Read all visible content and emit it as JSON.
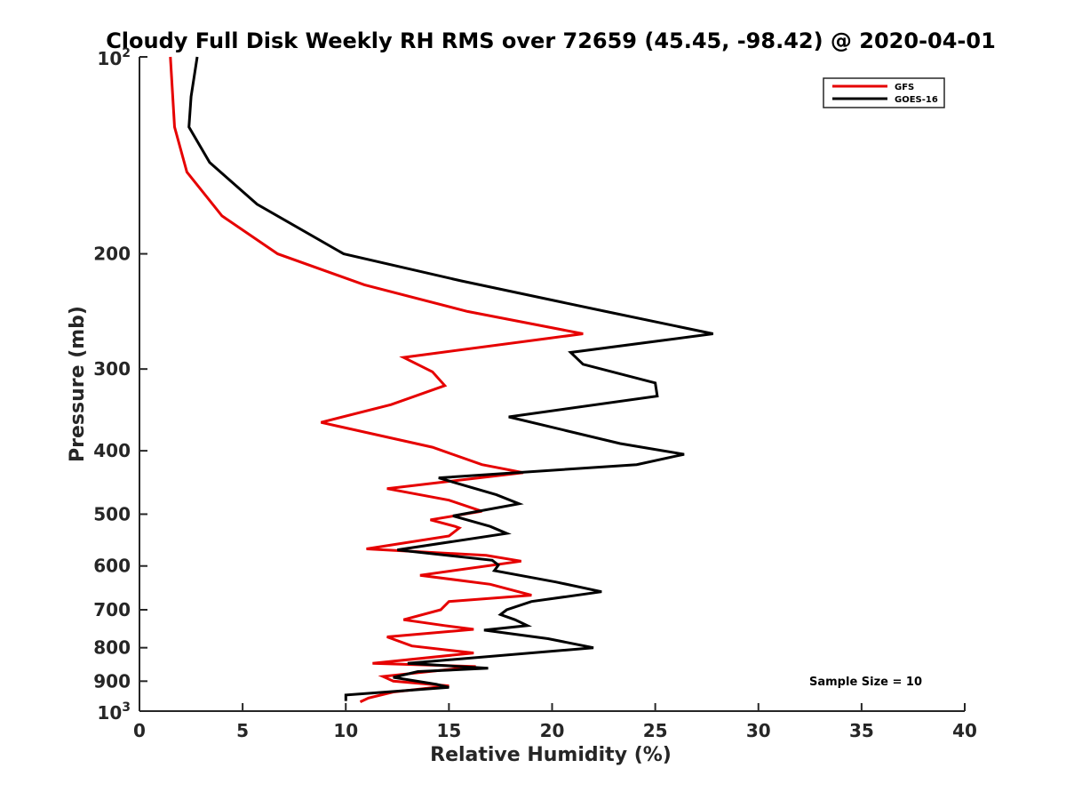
{
  "chart_data": {
    "type": "line",
    "title": "Cloudy Full Disk Weekly RH RMS over 72659 (45.45, -98.42) @ 2020-04-01",
    "xlabel": "Relative Humidity (%)",
    "ylabel": "Pressure (mb)",
    "xlim": [
      0,
      40
    ],
    "ylim": [
      100,
      1000
    ],
    "y_scale": "log",
    "y_reversed": true,
    "x_ticks": [
      "0",
      "5",
      "10",
      "15",
      "20",
      "25",
      "30",
      "35",
      "40"
    ],
    "y_ticks": [
      {
        "value": 100,
        "base": "10",
        "exp": "2"
      },
      {
        "value": 200,
        "label": "200"
      },
      {
        "value": 300,
        "label": "300"
      },
      {
        "value": 400,
        "label": "400"
      },
      {
        "value": 500,
        "label": "500"
      },
      {
        "value": 600,
        "label": "600"
      },
      {
        "value": 700,
        "label": "700"
      },
      {
        "value": 800,
        "label": "800"
      },
      {
        "value": 900,
        "label": "900"
      },
      {
        "value": 1000,
        "base": "10",
        "exp": "3"
      }
    ],
    "grid": false,
    "legend": {
      "position": "top-right"
    },
    "annotation": "Sample Size = 10",
    "series": [
      {
        "name": "GFS",
        "color": "#e60000",
        "points": [
          [
            1.5,
            100
          ],
          [
            1.7,
            128
          ],
          [
            2.3,
            150
          ],
          [
            4.0,
            175
          ],
          [
            6.7,
            200
          ],
          [
            10.9,
            223
          ],
          [
            15.9,
            245
          ],
          [
            21.5,
            265
          ],
          [
            12.8,
            288
          ],
          [
            14.2,
            303
          ],
          [
            14.8,
            318
          ],
          [
            12.2,
            340
          ],
          [
            8.8,
            362
          ],
          [
            14.2,
            395
          ],
          [
            16.6,
            420
          ],
          [
            18.6,
            432
          ],
          [
            12.0,
            457
          ],
          [
            15.0,
            476
          ],
          [
            16.6,
            495
          ],
          [
            14.1,
            510
          ],
          [
            15.3,
            522
          ],
          [
            15.5,
            525
          ],
          [
            15.0,
            540
          ],
          [
            11.0,
            565
          ],
          [
            16.8,
            578
          ],
          [
            18.5,
            590
          ],
          [
            13.6,
            620
          ],
          [
            17.0,
            640
          ],
          [
            19.0,
            665
          ],
          [
            15.0,
            680
          ],
          [
            14.6,
            700
          ],
          [
            12.8,
            725
          ],
          [
            14.8,
            740
          ],
          [
            16.2,
            750
          ],
          [
            12.0,
            770
          ],
          [
            13.2,
            795
          ],
          [
            16.2,
            815
          ],
          [
            11.3,
            845
          ],
          [
            16.3,
            855
          ],
          [
            11.8,
            885
          ],
          [
            12.3,
            900
          ],
          [
            15.0,
            915
          ],
          [
            12.3,
            935
          ],
          [
            11.1,
            955
          ],
          [
            10.7,
            968
          ]
        ]
      },
      {
        "name": "GOES-16",
        "color": "#000000",
        "points": [
          [
            2.8,
            100
          ],
          [
            2.5,
            115
          ],
          [
            2.4,
            128
          ],
          [
            3.4,
            145
          ],
          [
            5.7,
            168
          ],
          [
            9.9,
            200
          ],
          [
            15.6,
            220
          ],
          [
            22.6,
            245
          ],
          [
            27.8,
            265
          ],
          [
            20.9,
            283
          ],
          [
            21.5,
            295
          ],
          [
            25.0,
            315
          ],
          [
            25.1,
            330
          ],
          [
            17.9,
            355
          ],
          [
            23.3,
            390
          ],
          [
            26.4,
            405
          ],
          [
            24.1,
            420
          ],
          [
            14.5,
            440
          ],
          [
            17.3,
            467
          ],
          [
            18.4,
            482
          ],
          [
            15.2,
            503
          ],
          [
            17.0,
            522
          ],
          [
            17.8,
            535
          ],
          [
            12.5,
            567
          ],
          [
            17.1,
            588
          ],
          [
            17.4,
            598
          ],
          [
            17.2,
            610
          ],
          [
            20.2,
            635
          ],
          [
            22.4,
            657
          ],
          [
            19.0,
            680
          ],
          [
            17.8,
            700
          ],
          [
            17.5,
            712
          ],
          [
            18.2,
            725
          ],
          [
            18.8,
            740
          ],
          [
            16.7,
            752
          ],
          [
            19.8,
            775
          ],
          [
            22.0,
            800
          ],
          [
            13.0,
            845
          ],
          [
            16.9,
            860
          ],
          [
            13.5,
            870
          ],
          [
            12.3,
            888
          ],
          [
            14.4,
            910
          ],
          [
            15.0,
            920
          ],
          [
            10.0,
            945
          ],
          [
            10.0,
            965
          ]
        ]
      }
    ]
  }
}
